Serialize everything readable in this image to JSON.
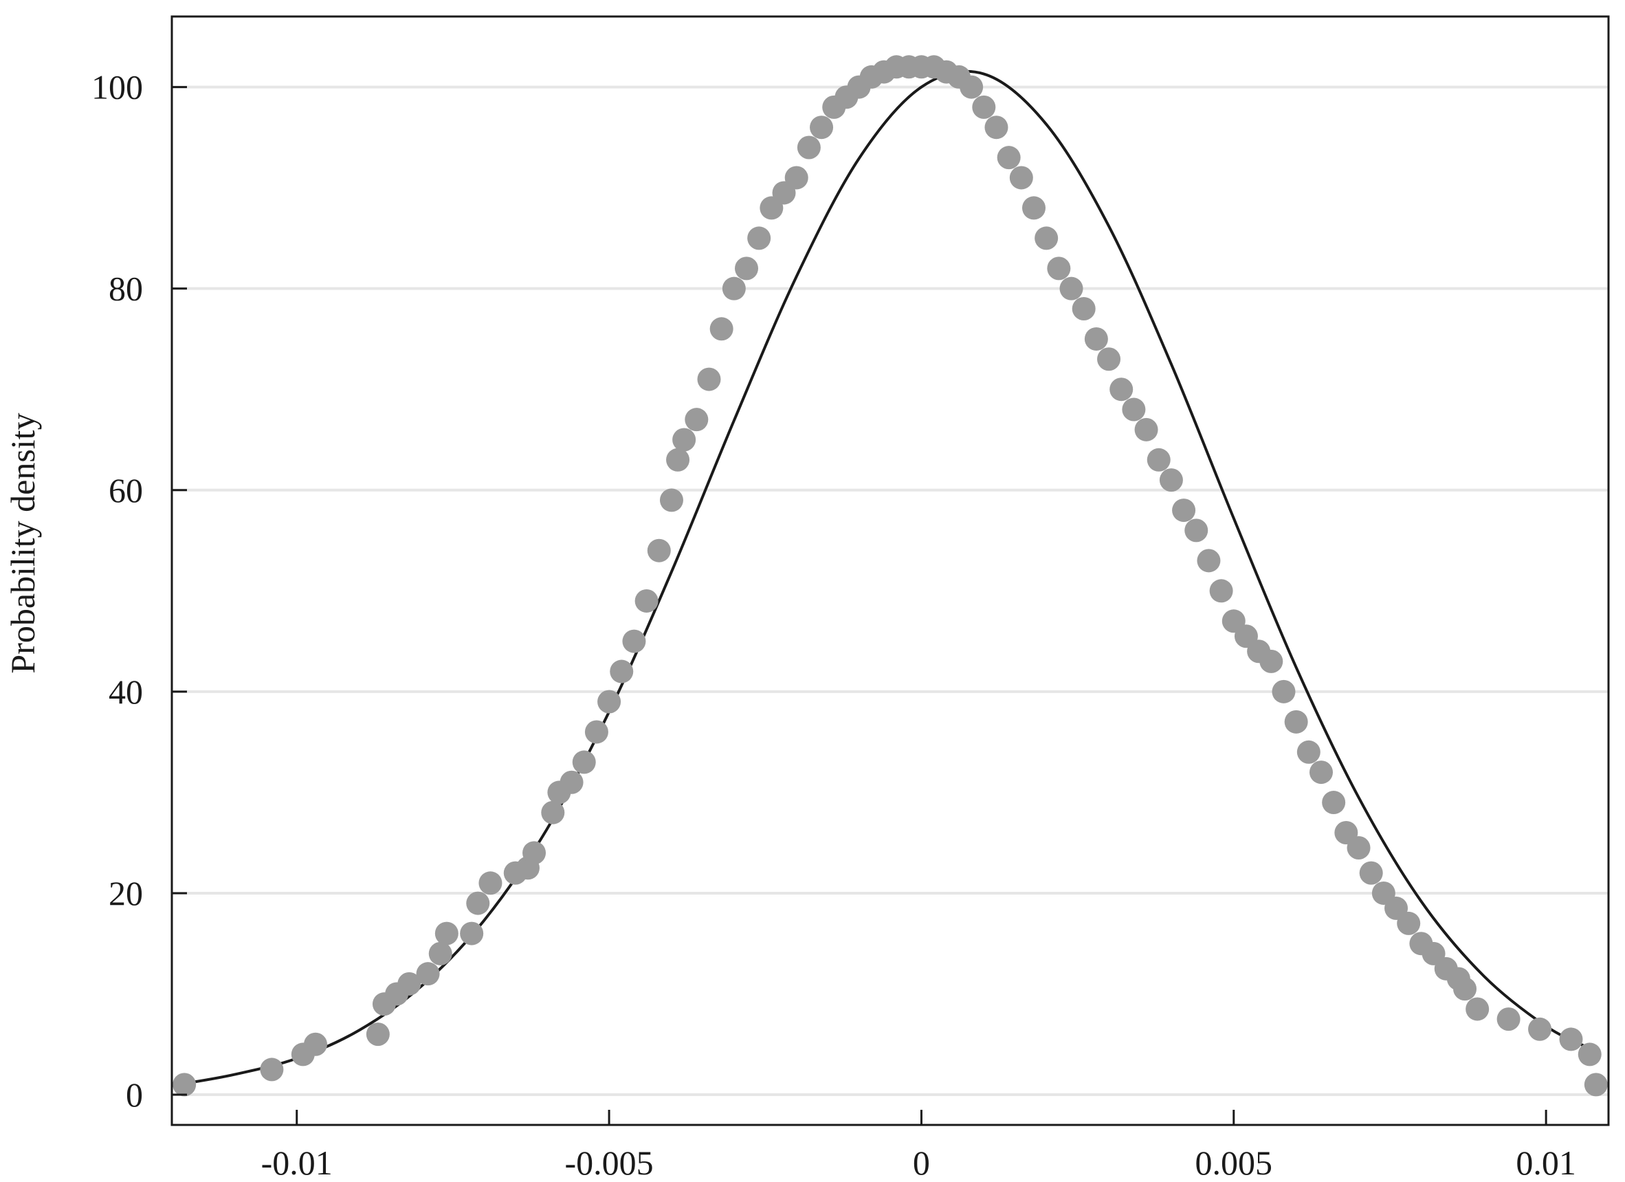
{
  "chart_data": {
    "type": "scatter",
    "title": "",
    "xlabel": "",
    "ylabel": "Probability density",
    "xlim": [
      -0.012,
      0.011
    ],
    "ylim": [
      -3,
      107
    ],
    "x_ticks": [
      -0.01,
      -0.005,
      0,
      0.005,
      0.01
    ],
    "x_tick_labels": [
      "-0.01",
      "-0.005",
      "0",
      "0.005",
      "0.01"
    ],
    "y_ticks": [
      0,
      20,
      40,
      60,
      80,
      100
    ],
    "y_tick_labels": [
      "0",
      "20",
      "40",
      "60",
      "80",
      "100"
    ],
    "grid": "horizontal",
    "legend": "none",
    "colors": {
      "points": "#9a9a9a",
      "curve": "#1a1a1a",
      "grid": "#e6e6e6",
      "axis": "#1a1a1a"
    },
    "series": [
      {
        "kind": "scatter",
        "x": [
          -0.0118,
          -0.0104,
          -0.0099,
          -0.0097,
          -0.0087,
          -0.0086,
          -0.0084,
          -0.0082,
          -0.0079,
          -0.0077,
          -0.0076,
          -0.0072,
          -0.0071,
          -0.0069,
          -0.0065,
          -0.0063,
          -0.0062,
          -0.0059,
          -0.0058,
          -0.0056,
          -0.0054,
          -0.0052,
          -0.005,
          -0.0048,
          -0.0046,
          -0.0044,
          -0.0042,
          -0.004,
          -0.0039,
          -0.0038,
          -0.0036,
          -0.0034,
          -0.0032,
          -0.003,
          -0.0028,
          -0.0026,
          -0.0024,
          -0.0022,
          -0.002,
          -0.0018,
          -0.0016,
          -0.0014,
          -0.0012,
          -0.001,
          -0.0008,
          -0.0006,
          -0.0004,
          -0.0002,
          0.0,
          0.0002,
          0.0004,
          0.0006,
          0.0008,
          0.001,
          0.0012,
          0.0014,
          0.0016,
          0.0018,
          0.002,
          0.0022,
          0.0024,
          0.0026,
          0.0028,
          0.003,
          0.0032,
          0.0034,
          0.0036,
          0.0038,
          0.004,
          0.0042,
          0.0044,
          0.0046,
          0.0048,
          0.005,
          0.0052,
          0.0054,
          0.0056,
          0.0058,
          0.006,
          0.0062,
          0.0064,
          0.0066,
          0.0068,
          0.007,
          0.0072,
          0.0074,
          0.0076,
          0.0078,
          0.008,
          0.0082,
          0.0084,
          0.0086,
          0.0087,
          0.0089,
          0.0094,
          0.0099,
          0.0104,
          0.0107,
          0.0108
        ],
        "y": [
          1.0,
          2.5,
          4.0,
          5.0,
          6.0,
          9.0,
          10.0,
          11.0,
          12.0,
          14.0,
          16.0,
          16.0,
          19.0,
          21.0,
          22.0,
          22.5,
          24.0,
          28.0,
          30.0,
          31.0,
          33.0,
          36.0,
          39.0,
          42.0,
          45.0,
          49.0,
          54.0,
          59.0,
          63.0,
          65.0,
          67.0,
          71.0,
          76.0,
          80.0,
          82.0,
          85.0,
          88.0,
          89.5,
          91.0,
          94.0,
          96.0,
          98.0,
          99.0,
          100.0,
          101.0,
          101.5,
          102.0,
          102.0,
          102.0,
          102.0,
          101.5,
          101.0,
          100.0,
          98.0,
          96.0,
          93.0,
          91.0,
          88.0,
          85.0,
          82.0,
          80.0,
          78.0,
          75.0,
          73.0,
          70.0,
          68.0,
          66.0,
          63.0,
          61.0,
          58.0,
          56.0,
          53.0,
          50.0,
          47.0,
          45.5,
          44.0,
          43.0,
          40.0,
          37.0,
          34.0,
          32.0,
          29.0,
          26.0,
          24.5,
          22.0,
          20.0,
          18.5,
          17.0,
          15.0,
          14.0,
          12.5,
          11.5,
          10.5,
          8.5,
          7.5,
          6.5,
          5.5,
          4.0,
          1.0
        ]
      },
      {
        "kind": "line",
        "distribution": "normal fit",
        "x": [
          -0.0118,
          -0.011,
          -0.01,
          -0.009,
          -0.008,
          -0.007,
          -0.006,
          -0.005,
          -0.004,
          -0.003,
          -0.002,
          -0.001,
          0.0,
          0.001,
          0.002,
          0.003,
          0.004,
          0.005,
          0.006,
          0.007,
          0.008,
          0.009,
          0.01,
          0.0107
        ],
        "y": [
          1.1,
          2.0,
          3.6,
          6.4,
          10.8,
          17.3,
          26.3,
          38.0,
          51.9,
          66.9,
          81.2,
          92.9,
          100.0,
          101.3,
          96.3,
          86.2,
          72.5,
          57.2,
          42.4,
          29.5,
          19.2,
          11.8,
          6.8,
          4.6
        ]
      }
    ]
  }
}
